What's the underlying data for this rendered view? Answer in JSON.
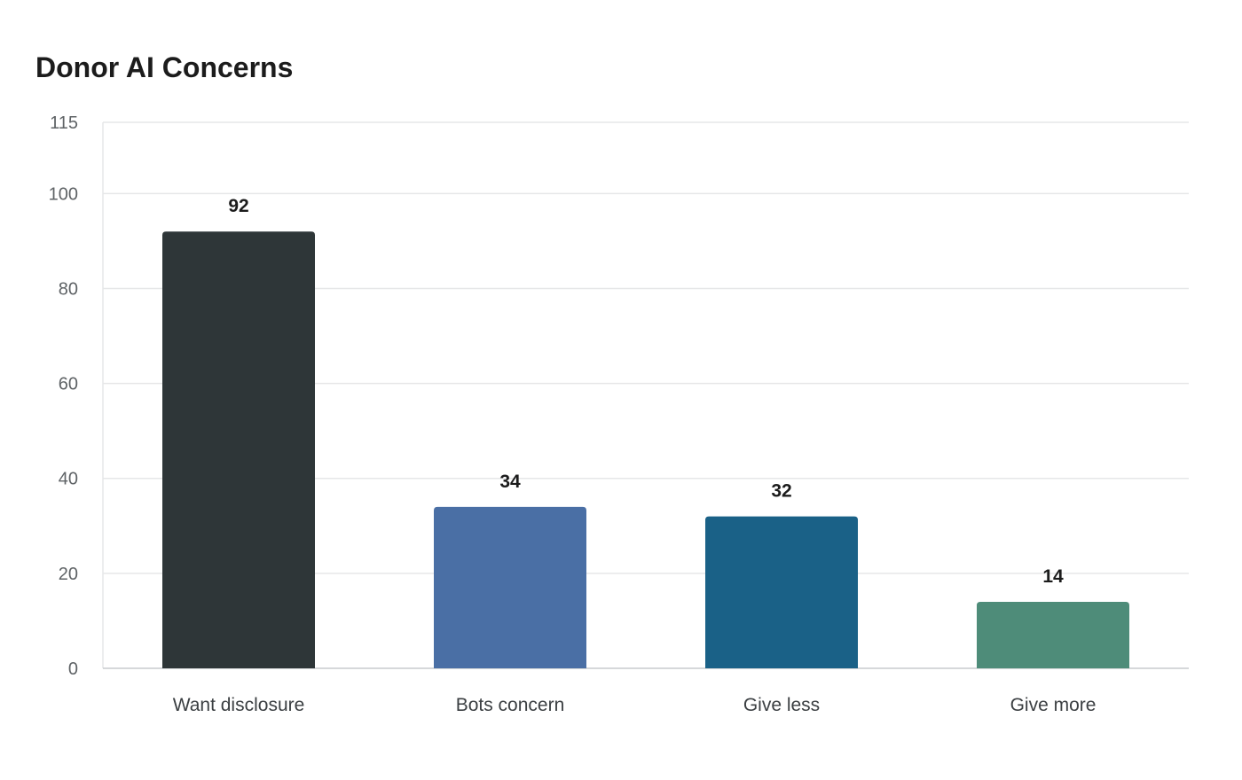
{
  "chart_data": {
    "type": "bar",
    "title": "Donor AI Concerns",
    "xlabel": "",
    "ylabel": "",
    "categories": [
      "Want disclosure",
      "Bots concern",
      "Give less",
      "Give more"
    ],
    "values": [
      92,
      34,
      32,
      14
    ],
    "ylim": [
      0,
      115
    ],
    "yticks": [
      0,
      20,
      40,
      60,
      80,
      100,
      115
    ],
    "colors": [
      "#2e3638",
      "#4a6fa5",
      "#1a6187",
      "#4e8c79"
    ],
    "grid": true,
    "legend": "none"
  }
}
